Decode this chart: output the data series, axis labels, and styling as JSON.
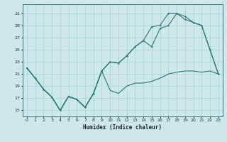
{
  "xlabel": "Humidex (Indice chaleur)",
  "background_color": "#cce8e8",
  "grid_color": "#aacfcf",
  "line_color": "#267a6e",
  "x_ticks": [
    0,
    1,
    2,
    3,
    4,
    5,
    6,
    7,
    8,
    9,
    10,
    11,
    12,
    13,
    14,
    15,
    16,
    17,
    18,
    19,
    20,
    21,
    22,
    23
  ],
  "y_ticks": [
    15,
    17,
    19,
    21,
    23,
    25,
    27,
    29,
    31
  ],
  "xlim": [
    -0.5,
    23.5
  ],
  "ylim": [
    14.0,
    32.5
  ],
  "series1_x": [
    0,
    1,
    2,
    3,
    4,
    5,
    6,
    7,
    8,
    9,
    10,
    11,
    12,
    13,
    14,
    15,
    16,
    17,
    18,
    19,
    20,
    21,
    22,
    23
  ],
  "series1_y": [
    22.0,
    20.3,
    18.5,
    17.2,
    15.0,
    17.3,
    16.8,
    15.5,
    17.8,
    21.5,
    18.3,
    17.8,
    19.0,
    19.5,
    19.5,
    19.8,
    20.3,
    21.0,
    21.3,
    21.5,
    21.5,
    21.3,
    21.5,
    21.0
  ],
  "series2_x": [
    0,
    1,
    2,
    3,
    4,
    5,
    6,
    7,
    8,
    9,
    10,
    11,
    12,
    13,
    14,
    15,
    16,
    17,
    18,
    19,
    20,
    21,
    22,
    23
  ],
  "series2_y": [
    22.0,
    20.3,
    18.5,
    17.2,
    15.0,
    17.3,
    16.8,
    15.5,
    17.8,
    21.5,
    23.0,
    22.8,
    24.0,
    25.5,
    26.5,
    25.5,
    28.5,
    29.0,
    31.0,
    30.5,
    29.5,
    29.0,
    25.0,
    21.0
  ],
  "series3_x": [
    0,
    1,
    2,
    3,
    4,
    5,
    6,
    7,
    8,
    9,
    10,
    11,
    12,
    13,
    14,
    15,
    16,
    17,
    18,
    19,
    20,
    21,
    22,
    23
  ],
  "series3_y": [
    22.0,
    20.3,
    18.5,
    17.2,
    15.0,
    17.3,
    16.8,
    15.5,
    17.8,
    21.5,
    23.0,
    22.8,
    24.0,
    25.5,
    26.5,
    28.8,
    29.0,
    31.0,
    31.0,
    30.0,
    29.5,
    29.0,
    25.0,
    21.0
  ]
}
